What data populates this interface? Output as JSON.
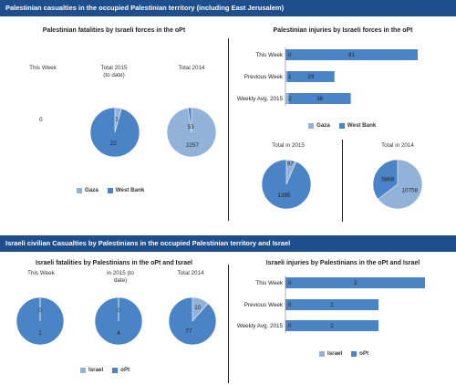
{
  "colors": {
    "light": "#92b2d9",
    "dark": "#4a84c6",
    "banner": "#1f4e8c"
  },
  "banner1": "Palestinian casualties in the occupied Palestinian territory (including East Jerusalem)",
  "banner2": "Israeli civilian Casualties by Palestinians in the occupied Palestinian territory and Israel",
  "chart_data": [
    {
      "id": "pal_fatalities",
      "type": "pie",
      "title": "Palestinian fatalities by Israeli forces in the oPt",
      "pies": [
        {
          "label": "This Week",
          "values": [
            0,
            0
          ],
          "center_text": "0"
        },
        {
          "label": "Total 2015\n(to date)",
          "values": [
            1,
            22
          ]
        },
        {
          "label": "Total 2014",
          "values": [
            2257,
            53
          ]
        }
      ],
      "series": [
        "Gaza",
        "West Bank"
      ],
      "legend": [
        "Gaza",
        "West Bank"
      ]
    },
    {
      "id": "pal_injuries",
      "type": "bar",
      "title": "Palestinian injuries by Israeli forces in the oPt",
      "categories": [
        "This Week",
        "Previous Week",
        "Weekly Avg. 2015"
      ],
      "series": [
        {
          "name": "Gaza",
          "values": [
            0,
            1,
            2
          ]
        },
        {
          "name": "West Bank",
          "values": [
            81,
            29,
            38
          ]
        }
      ],
      "legend": [
        "Gaza",
        "West Bank"
      ]
    },
    {
      "id": "pal_injuries_totals",
      "type": "pie",
      "pies": [
        {
          "label": "Total in 2015",
          "values": [
            97,
            1395
          ]
        },
        {
          "label": "Total in 2014",
          "values": [
            10758,
            5868
          ]
        }
      ],
      "series": [
        "Gaza",
        "West Bank"
      ]
    },
    {
      "id": "isr_fatalities",
      "type": "pie",
      "title": "Israeli fatalities by Palestinians in the oPt and Israel",
      "pies": [
        {
          "label": "This Week",
          "values": [
            0,
            1
          ]
        },
        {
          "label": "in 2015 (to\ndate)",
          "values": [
            0,
            4
          ]
        },
        {
          "label": "Total 2014",
          "values": [
            10,
            77
          ]
        }
      ],
      "series": [
        "Israel",
        "oPt"
      ],
      "legend": [
        "Israel",
        "oPt"
      ]
    },
    {
      "id": "isr_injuries",
      "type": "bar",
      "title": "Israeli injuries by Palestinians in the oPt and Israel",
      "categories": [
        "This Week",
        "Previous Week",
        "Weekly Avg. 2015"
      ],
      "series": [
        {
          "name": "Israel",
          "values": [
            0,
            0,
            0
          ]
        },
        {
          "name": "oPt",
          "values": [
            3,
            2,
            2
          ]
        }
      ],
      "legend": [
        "Israel",
        "oPt"
      ]
    }
  ]
}
